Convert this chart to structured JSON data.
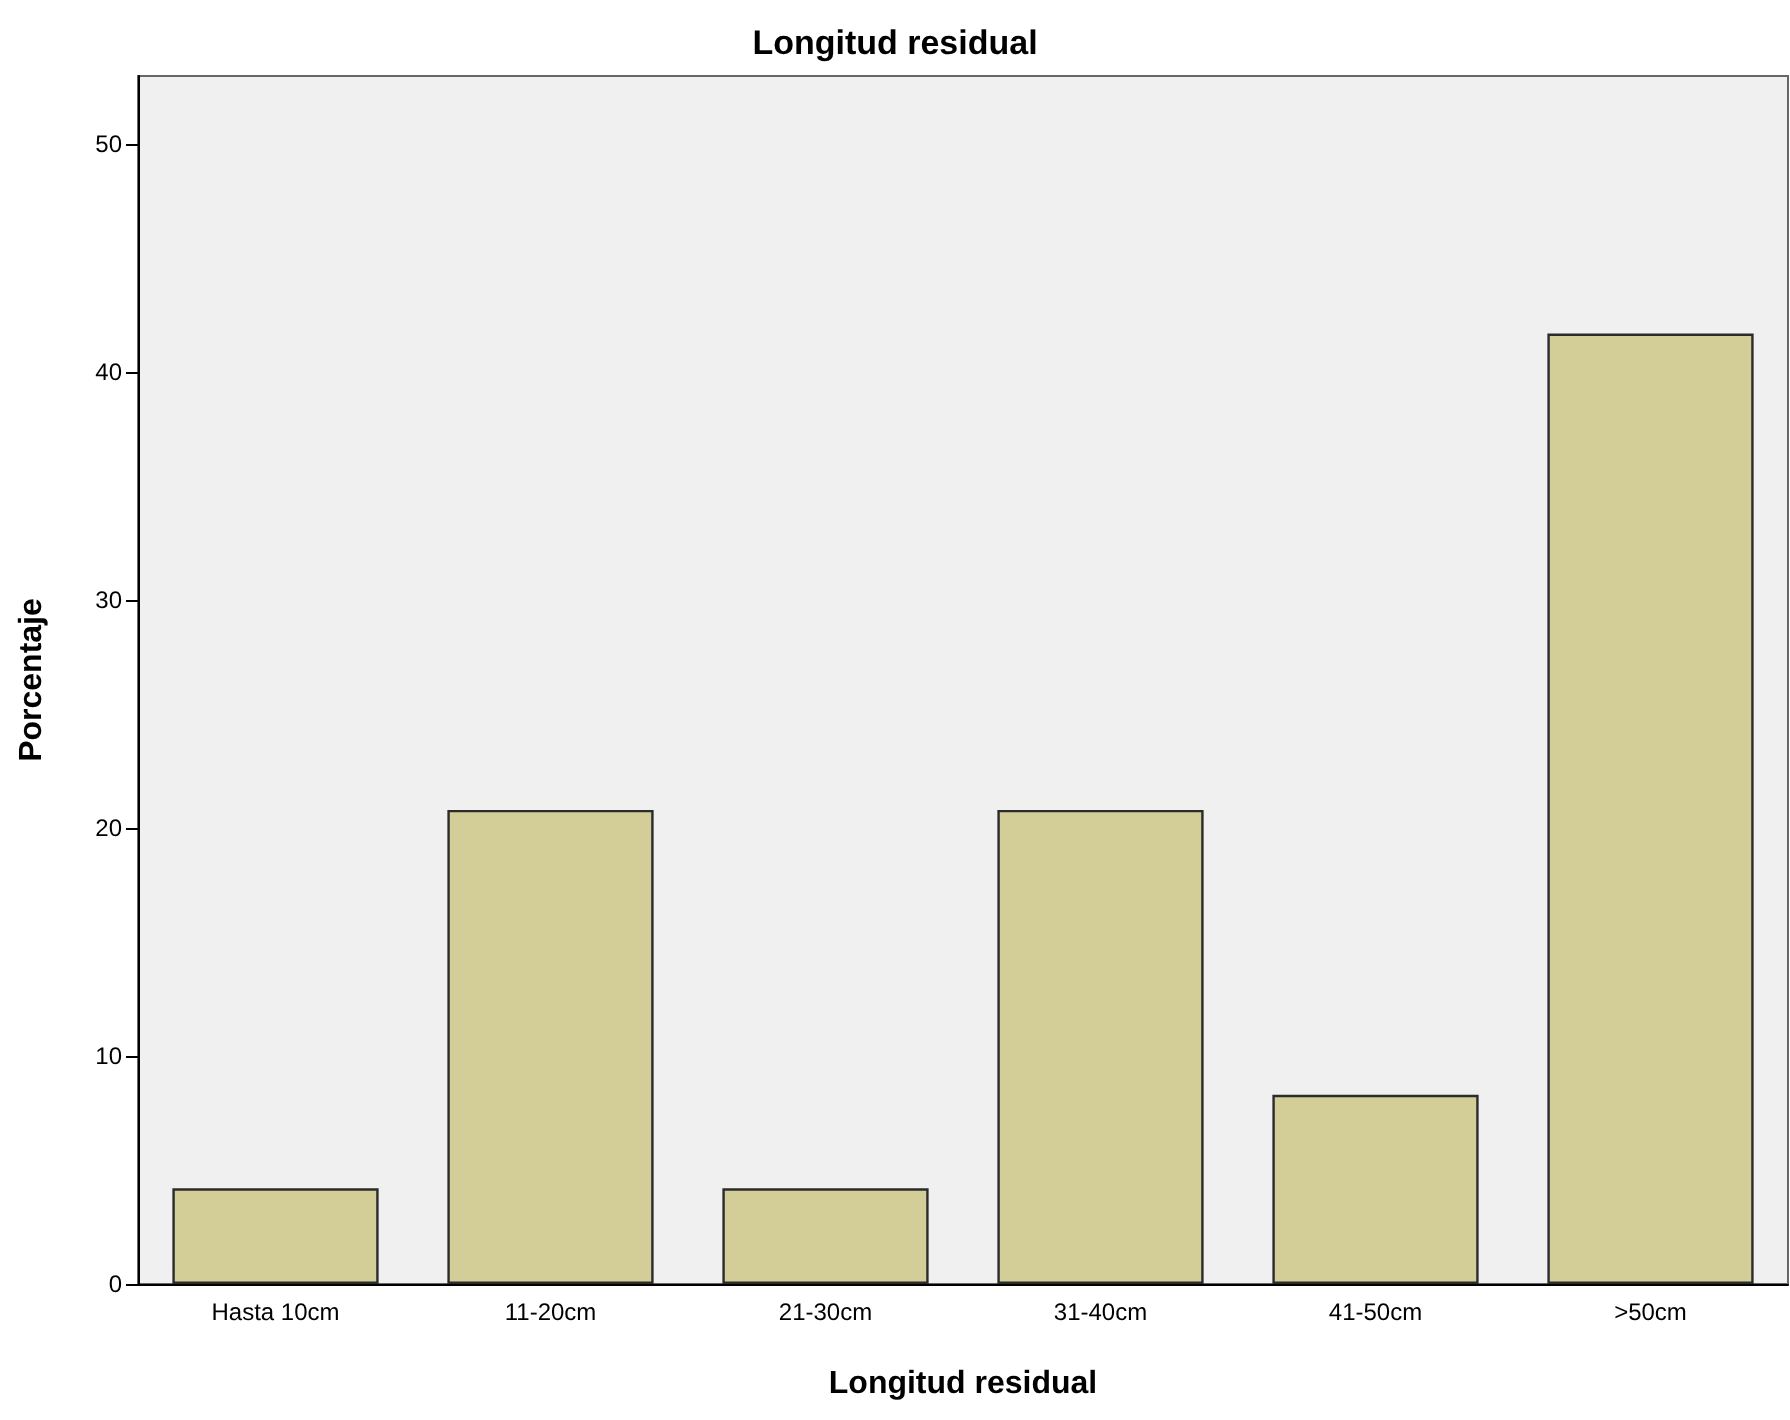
{
  "chart_data": {
    "type": "bar",
    "title": "Longitud residual",
    "xlabel": "Longitud residual",
    "ylabel": "Porcentaje",
    "categories": [
      "Hasta 10cm",
      "11-20cm",
      "21-30cm",
      "31-40cm",
      "41-50cm",
      ">50cm"
    ],
    "values": [
      4.2,
      20.8,
      4.2,
      20.8,
      8.3,
      41.7
    ],
    "color": "#d3ce97",
    "ylim": [
      0,
      53
    ],
    "yticks": [
      0,
      10,
      20,
      30,
      40,
      50
    ],
    "grid": false
  }
}
